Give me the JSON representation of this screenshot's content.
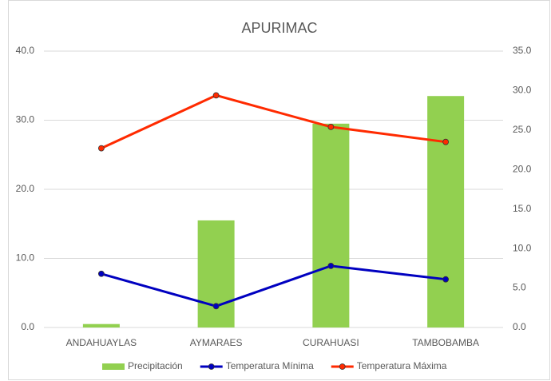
{
  "chart_data": {
    "type": "bar_line",
    "title": "APURIMAC",
    "categories": [
      "ANDAHUAYLAS",
      "AYMARAES",
      "CURAHUASI",
      "TAMBOBAMBA"
    ],
    "series": [
      {
        "name": "Precipitación",
        "type": "bar",
        "color": "#92d050",
        "values": [
          0.5,
          15.5,
          29.5,
          33.5
        ]
      },
      {
        "name": "Temperatura Mínima",
        "type": "line",
        "axis": "y2",
        "color": "#0000c0",
        "values": [
          6.8,
          2.7,
          7.8,
          6.1
        ]
      },
      {
        "name": "Temperatura Máxima",
        "type": "line",
        "axis": "y2",
        "color": "#ff2a00",
        "values": [
          22.7,
          29.4,
          25.4,
          23.5
        ]
      }
    ],
    "ylim": [
      0,
      40
    ],
    "yticks": [
      {
        "value": 0,
        "label": "0.0"
      },
      {
        "value": 10,
        "label": "10.0"
      },
      {
        "value": 20,
        "label": "20.0"
      },
      {
        "value": 30,
        "label": "30.0"
      },
      {
        "value": 40,
        "label": "40.0"
      }
    ],
    "y2lim": [
      0,
      35
    ],
    "y2ticks": [
      {
        "value": 0,
        "label": "0.0"
      },
      {
        "value": 5,
        "label": "5.0"
      },
      {
        "value": 10,
        "label": "10.0"
      },
      {
        "value": 15,
        "label": "15.0"
      },
      {
        "value": 20,
        "label": "20.0"
      },
      {
        "value": 25,
        "label": "25.0"
      },
      {
        "value": 30,
        "label": "30.0"
      },
      {
        "value": 35,
        "label": "35.0"
      }
    ],
    "grid": true,
    "legend": "bottom"
  }
}
